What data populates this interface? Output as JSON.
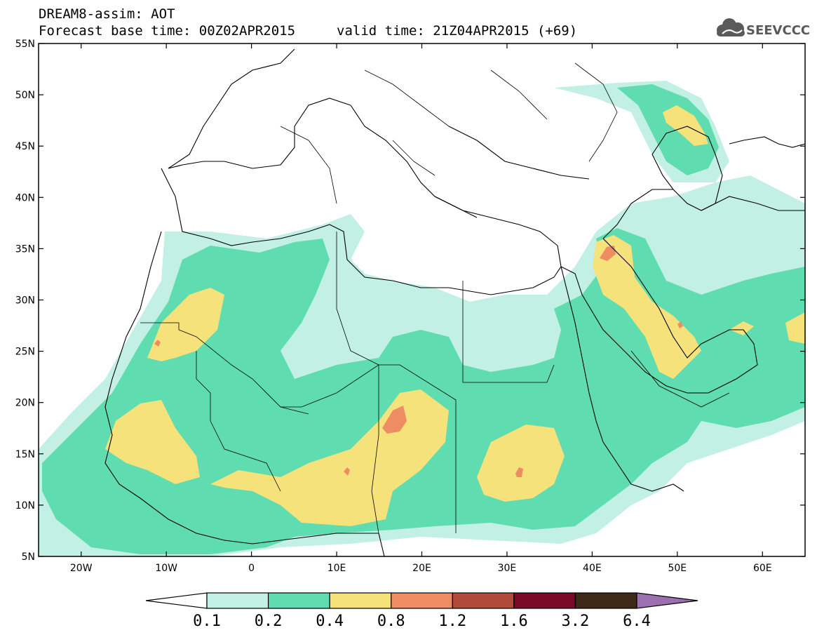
{
  "header": {
    "line1": "DREAM8-assim: AOT",
    "line2_left": "Forecast base time: 00Z02APR2015",
    "line2_right": "valid time: 21Z04APR2015 (+69)"
  },
  "logo": {
    "text": "SEEVCCC",
    "icon": "cloud-icon",
    "color": "#5a5a5a"
  },
  "map": {
    "lon_range": [
      -25,
      65
    ],
    "lat_range": [
      5,
      55
    ],
    "lat_ticks": [
      "55N",
      "50N",
      "45N",
      "40N",
      "35N",
      "30N",
      "25N",
      "20N",
      "15N",
      "10N",
      "5N"
    ],
    "lon_ticks": [
      "20W",
      "10W",
      "0",
      "10E",
      "20E",
      "30E",
      "40E",
      "50E",
      "60E"
    ]
  },
  "colorbar": {
    "labels": [
      "0.1",
      "0.2",
      "0.4",
      "0.8",
      "1.2",
      "1.6",
      "3.2",
      "6.4"
    ],
    "colors": [
      "#ffffff",
      "#c2f0e4",
      "#5fdcb0",
      "#f5e27a",
      "#ee8c62",
      "#b04a3a",
      "#7a0a28",
      "#3e2a16",
      "#9c70b0"
    ]
  }
}
